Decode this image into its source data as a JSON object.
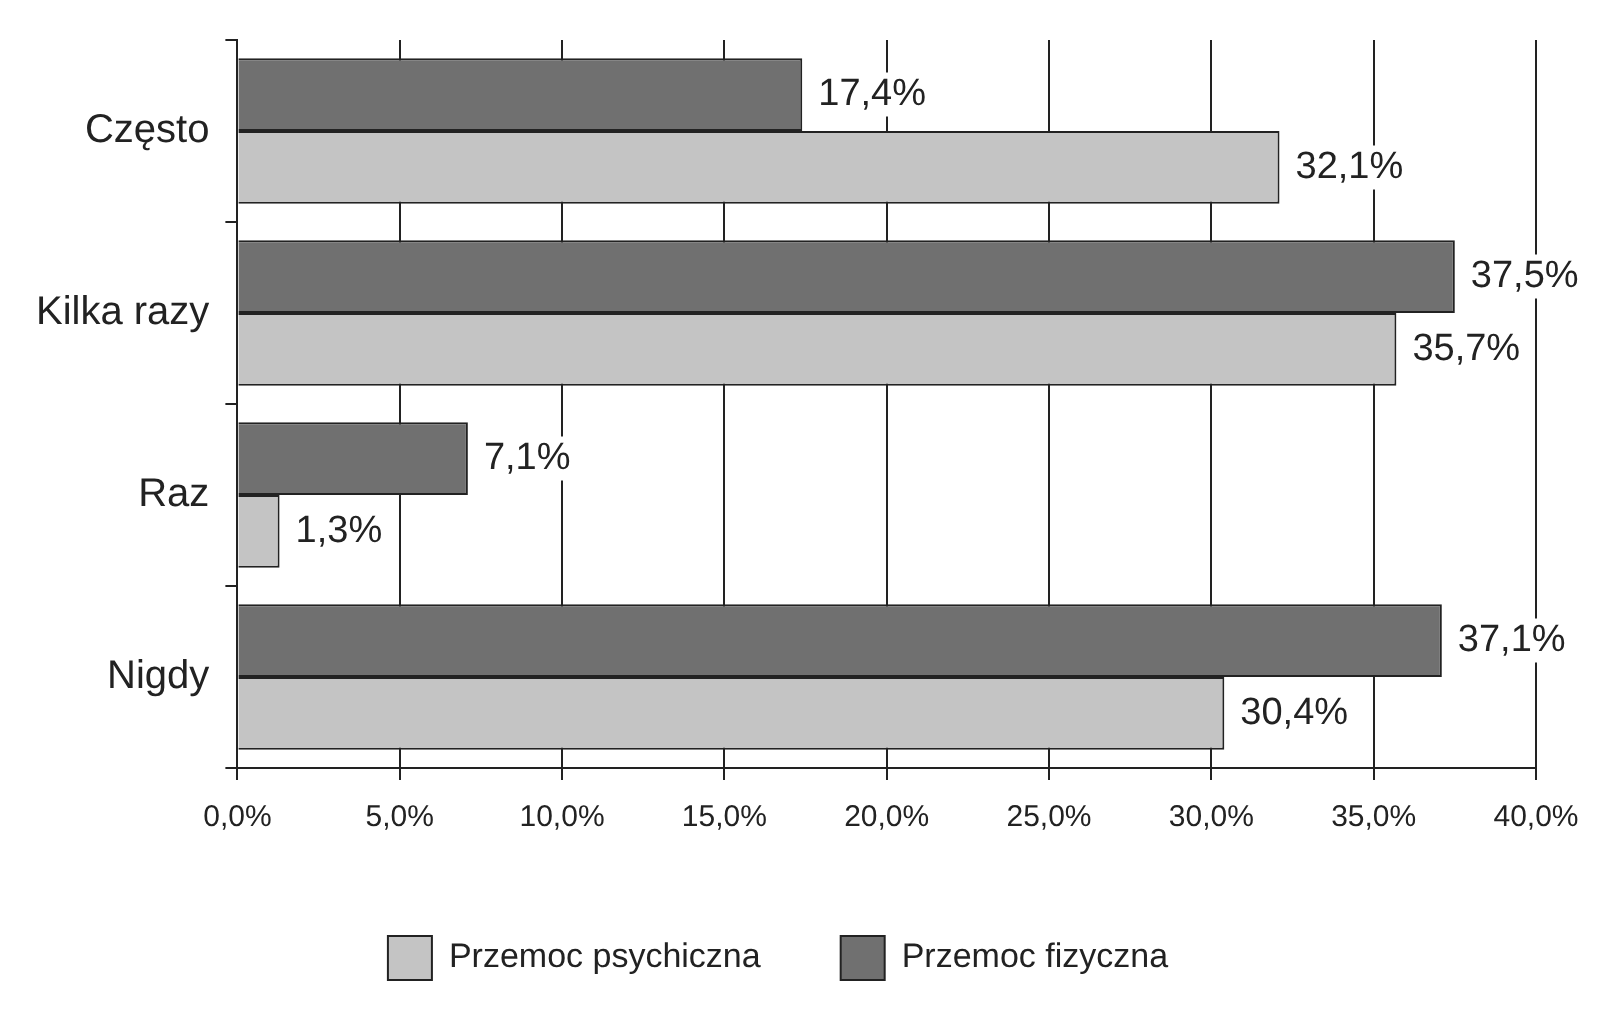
{
  "chart_data": {
    "type": "bar",
    "orientation": "horizontal",
    "categories": [
      "Często",
      "Kilka razy",
      "Raz",
      "Nigdy"
    ],
    "series": [
      {
        "name": "Przemoc fizyczna",
        "color": "#707070",
        "values": [
          17.4,
          37.5,
          7.1,
          37.1
        ],
        "value_labels": [
          "17,4%",
          "37,5%",
          "7,1%",
          "37,1%"
        ]
      },
      {
        "name": "Przemoc psychiczna",
        "color": "#c4c4c4",
        "values": [
          32.1,
          35.7,
          1.3,
          30.4
        ],
        "value_labels": [
          "32,1%",
          "35,7%",
          "1,3%",
          "30,4%"
        ]
      }
    ],
    "xlim": [
      0,
      40
    ],
    "xticks": [
      {
        "value": 0,
        "label": "0,0%"
      },
      {
        "value": 5,
        "label": "5,0%"
      },
      {
        "value": 10,
        "label": "10,0%"
      },
      {
        "value": 15,
        "label": "15,0%"
      },
      {
        "value": 20,
        "label": "20,0%"
      },
      {
        "value": 25,
        "label": "25,0%"
      },
      {
        "value": 30,
        "label": "30,0%"
      },
      {
        "value": 35,
        "label": "35,0%"
      },
      {
        "value": 40,
        "label": "40,0%"
      }
    ],
    "grid": "x",
    "legend": "bottom"
  }
}
